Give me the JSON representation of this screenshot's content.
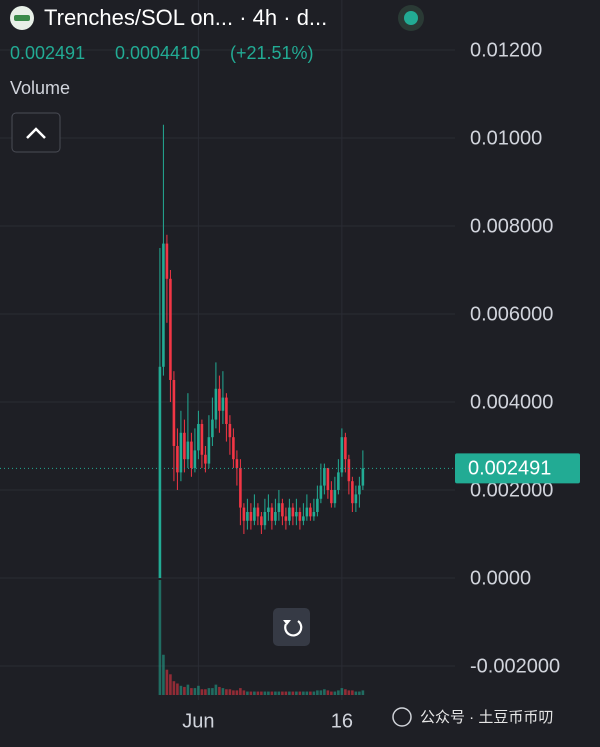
{
  "header": {
    "title": "Trenches/SOL on... · 4h · d...",
    "price": "0.002491",
    "change": "0.0004410",
    "change_pct": "(+21.51%)",
    "volume_label": "Volume"
  },
  "watermark": "公众号 · 土豆币币叨",
  "chart_data": {
    "type": "candlestick",
    "up_color": "#22ab94",
    "down_color": "#f23645",
    "grid": true,
    "last_price": 0.002491,
    "ylim": [
      -0.002773,
      0.013136
    ],
    "yticks": [
      {
        "value": 0.012,
        "label": "0.01200"
      },
      {
        "value": 0.01,
        "label": "0.01000"
      },
      {
        "value": 0.008,
        "label": "0.008000"
      },
      {
        "value": 0.006,
        "label": "0.006000"
      },
      {
        "value": 0.004,
        "label": "0.004000"
      },
      {
        "value": 0.002,
        "label": "0.002000"
      },
      {
        "value": 0,
        "label": "0.0000"
      },
      {
        "value": -0.002,
        "label": "-0.002000"
      }
    ],
    "xlim": [
      -45.7,
      82.9
    ],
    "xticks": [
      {
        "value": 11,
        "label": "Jun"
      },
      {
        "value": 52,
        "label": "16"
      }
    ],
    "open": [
      0,
      0.0048,
      0.0076,
      0.0068,
      0.0045,
      0.003,
      0.0024,
      0.0033,
      0.0027,
      0.0031,
      0.0025,
      0.0029,
      0.0035,
      0.0028,
      0.0026,
      0.0032,
      0.0036,
      0.0043,
      0.0038,
      0.0041,
      0.0035,
      0.0032,
      0.0027,
      0.0025,
      0.0016,
      0.0013,
      0.0015,
      0.0013,
      0.0016,
      0.0014,
      0.0012,
      0.0015,
      0.0016,
      0.0013,
      0.0015,
      0.0017,
      0.0014,
      0.0013,
      0.0016,
      0.0014,
      0.0015,
      0.0013,
      0.0014,
      0.0016,
      0.0014,
      0.0015,
      0.0018,
      0.0021,
      0.0025,
      0.002,
      0.0017,
      0.002,
      0.0024,
      0.0032,
      0.0027,
      0.0022,
      0.0017,
      0.0019,
      0.0021
    ],
    "high": [
      0.0075,
      0.0103,
      0.0078,
      0.007,
      0.0047,
      0.0034,
      0.0038,
      0.0036,
      0.0042,
      0.0033,
      0.0034,
      0.0038,
      0.0036,
      0.003,
      0.0037,
      0.0041,
      0.0049,
      0.0046,
      0.0047,
      0.0042,
      0.0037,
      0.0034,
      0.0029,
      0.0027,
      0.0017,
      0.0018,
      0.0017,
      0.0019,
      0.0017,
      0.0015,
      0.0018,
      0.0019,
      0.0017,
      0.0018,
      0.002,
      0.0018,
      0.0016,
      0.0018,
      0.0017,
      0.0018,
      0.0016,
      0.0017,
      0.0019,
      0.0017,
      0.0018,
      0.0021,
      0.0026,
      0.0026,
      0.0025,
      0.0022,
      0.0023,
      0.0027,
      0.0034,
      0.0033,
      0.0028,
      0.0023,
      0.0021,
      0.0023,
      0.0029
    ],
    "low": [
      0,
      0.0046,
      0.0058,
      0.004,
      0.0022,
      0.002,
      0.0022,
      0.0024,
      0.0025,
      0.0023,
      0.0024,
      0.0027,
      0.0025,
      0.0024,
      0.0025,
      0.003,
      0.0034,
      0.0033,
      0.0035,
      0.0031,
      0.0028,
      0.0025,
      0.0021,
      0.0012,
      0.001,
      0.0011,
      0.0011,
      0.0012,
      0.0012,
      0.001,
      0.0011,
      0.0013,
      0.0011,
      0.0012,
      0.0013,
      0.0012,
      0.0011,
      0.0012,
      0.0012,
      0.0012,
      0.0011,
      0.0012,
      0.0013,
      0.0013,
      0.0013,
      0.0014,
      0.0017,
      0.0019,
      0.0018,
      0.0016,
      0.0016,
      0.0019,
      0.0023,
      0.0024,
      0.0019,
      0.0015,
      0.0015,
      0.0016,
      0.002
    ],
    "close": [
      0.0048,
      0.0076,
      0.0068,
      0.0045,
      0.003,
      0.0024,
      0.0033,
      0.0027,
      0.0031,
      0.0025,
      0.0029,
      0.0035,
      0.0028,
      0.0026,
      0.0032,
      0.0036,
      0.0043,
      0.0038,
      0.0041,
      0.0035,
      0.0032,
      0.0027,
      0.0025,
      0.0016,
      0.0013,
      0.0015,
      0.0013,
      0.0016,
      0.0014,
      0.0012,
      0.0015,
      0.0016,
      0.0013,
      0.0015,
      0.0017,
      0.0014,
      0.0013,
      0.0016,
      0.0014,
      0.0015,
      0.0013,
      0.0014,
      0.0016,
      0.0014,
      0.0015,
      0.0018,
      0.0021,
      0.0025,
      0.002,
      0.0017,
      0.002,
      0.0024,
      0.0032,
      0.0027,
      0.0022,
      0.0017,
      0.0019,
      0.0021,
      0.002491
    ],
    "volume": [
      100,
      35,
      22,
      18,
      12,
      10,
      8,
      7,
      9,
      6,
      6,
      8,
      5,
      5,
      6,
      6,
      9,
      7,
      6,
      5,
      5,
      4,
      4,
      6,
      4,
      3,
      3,
      3,
      3,
      3,
      3,
      3,
      3,
      3,
      3,
      3,
      3,
      3,
      3,
      3,
      3,
      3,
      3,
      3,
      3,
      4,
      4,
      5,
      4,
      3,
      3,
      4,
      6,
      5,
      4,
      4,
      3,
      3,
      4
    ]
  }
}
